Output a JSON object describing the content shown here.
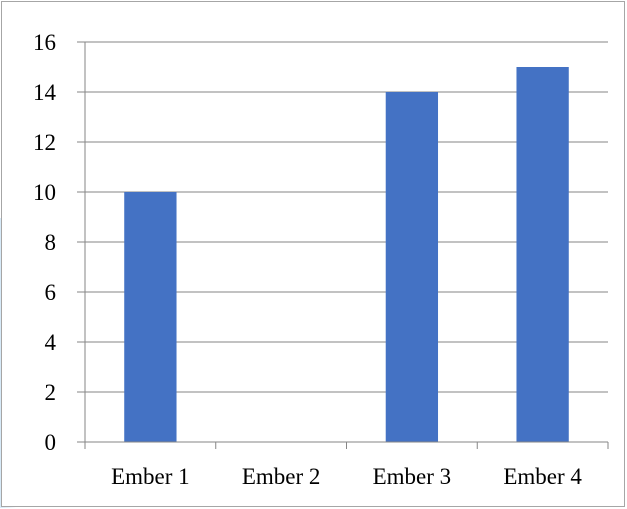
{
  "chart_data": {
    "type": "bar",
    "categories": [
      "Ember 1",
      "Ember 2",
      "Ember 3",
      "Ember 4"
    ],
    "values": [
      10,
      0,
      14,
      15
    ],
    "title": "",
    "xlabel": "",
    "ylabel": "",
    "ylim": [
      0,
      16
    ],
    "yticks": [
      "0",
      "2",
      "4",
      "6",
      "8",
      "10",
      "12",
      "14",
      "16"
    ],
    "grid": true,
    "legend": "none",
    "bar_color": "#4472c4",
    "grid_color": "#868686"
  }
}
